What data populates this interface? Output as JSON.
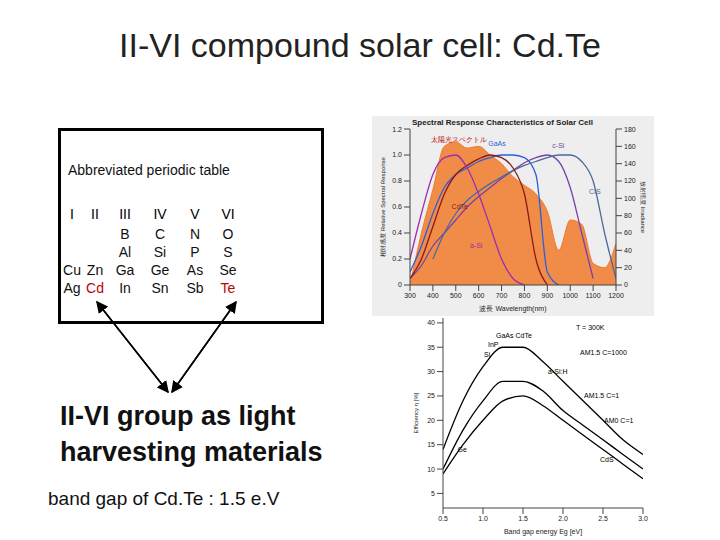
{
  "title": "II-VI compound solar cell: Cd.Te",
  "periodic_table": {
    "heading": "Abbreviated periodic table",
    "groups": [
      "I",
      "II",
      "III",
      "IV",
      "V",
      "VI"
    ],
    "rows": [
      [
        null,
        null,
        "B",
        "C",
        "N",
        "O"
      ],
      [
        null,
        null,
        "Al",
        "Si",
        "P",
        "S"
      ],
      [
        "Cu",
        "Zn",
        "Ga",
        "Ge",
        "As",
        "Se"
      ],
      [
        "Ag",
        "Cd",
        "In",
        "Sn",
        "Sb",
        "Te"
      ]
    ],
    "highlight": [
      "Cd",
      "Te"
    ],
    "highlight_color": "#c00000"
  },
  "caption": "II-VI group as light harvesting materials",
  "note": "band gap of Cd.Te : 1.5 e.V",
  "chart_data": [
    {
      "type": "line",
      "title": "Spectral Response Characteristics of Solar Cell",
      "xlabel": "波長 Wavelength(nm)",
      "ylabel": "相対感度 Relative Spectral Response",
      "y2label": "放射照度 Irradiance",
      "x": [
        300,
        350,
        400,
        450,
        500,
        550,
        600,
        650,
        700,
        750,
        800,
        850,
        900,
        950,
        1000,
        1050,
        1100,
        1150,
        1200
      ],
      "xlim": [
        300,
        1200
      ],
      "xticks": [
        300,
        400,
        500,
        600,
        700,
        800,
        900,
        1000,
        1100,
        1200
      ],
      "ylim": [
        0,
        1.2
      ],
      "yticks": [
        0,
        0.2,
        0.4,
        0.6,
        0.8,
        {
          "value": 1,
          "label": "1.0"
        },
        1.2
      ],
      "y2lim": [
        0,
        180
      ],
      "y2ticks": [
        0,
        20,
        40,
        60,
        80,
        100,
        120,
        140,
        160,
        180
      ],
      "grid": false,
      "series": [
        {
          "name": "太陽光スペクトル",
          "type": "area",
          "axis": "y2",
          "color": "#f07a2a",
          "values": [
            0,
            60,
            110,
            160,
            165,
            158,
            160,
            150,
            140,
            125,
            115,
            105,
            85,
            40,
            75,
            70,
            25,
            20,
            48
          ]
        },
        {
          "name": "GaAs",
          "type": "line",
          "color": "#2b5fd9",
          "values": [
            0.1,
            0.3,
            0.55,
            0.75,
            0.85,
            0.9,
            0.95,
            0.98,
            1,
            1,
            0.98,
            0.85,
            0.1,
            0,
            null,
            null,
            null,
            null,
            null
          ]
        },
        {
          "name": "c-Si",
          "type": "line",
          "color": "#7a3fa8",
          "values": [
            0.05,
            0.15,
            0.3,
            0.4,
            0.5,
            0.6,
            0.68,
            0.75,
            0.82,
            0.88,
            0.94,
            0.98,
            1,
            0.95,
            0.75,
            0.4,
            0.05,
            null,
            null
          ]
        },
        {
          "name": "CIS",
          "type": "line",
          "color": "#4a6a9a",
          "values": [
            null,
            null,
            0.2,
            0.4,
            0.55,
            0.65,
            0.72,
            0.78,
            0.83,
            0.88,
            0.92,
            0.95,
            0.98,
            1,
            1,
            0.95,
            0.8,
            0.4,
            0.05
          ]
        },
        {
          "name": "CdTe",
          "type": "line",
          "color": "#8b1a1a",
          "values": [
            0.05,
            0.2,
            0.45,
            0.7,
            0.85,
            0.92,
            0.97,
            1,
            0.98,
            0.9,
            0.7,
            0.2,
            0,
            null,
            null,
            null,
            null,
            null,
            null
          ]
        },
        {
          "name": "a-Si",
          "type": "line",
          "color": "#9a2fb0",
          "values": [
            0.2,
            0.55,
            0.85,
            0.98,
            1,
            0.9,
            0.7,
            0.45,
            0.2,
            0.05,
            0,
            null,
            null,
            null,
            null,
            null,
            null,
            null,
            null
          ]
        }
      ],
      "annotations": [
        {
          "text": "太陽光スペクトル",
          "x": 370,
          "y": 1.12,
          "color": "#c00000"
        },
        {
          "text": "GaAs",
          "x": 620,
          "y": 1.09,
          "color": "#2b5fd9"
        },
        {
          "text": "c-Si",
          "x": 900,
          "y": 1.07,
          "color": "#7a3fa8"
        },
        {
          "text": "CIS",
          "x": 1060,
          "y": 0.72,
          "color": "#4a6a9a"
        },
        {
          "text": "CdTe",
          "x": 460,
          "y": 0.6,
          "color": "#8b1a1a"
        },
        {
          "text": "a-Si",
          "x": 540,
          "y": 0.3,
          "color": "#9a2fb0"
        }
      ]
    },
    {
      "type": "line",
      "xlabel": "Band gap energy Eg [eV]",
      "ylabel": "Efficiency η [%]",
      "x": [
        0.5,
        0.75,
        1,
        1.25,
        1.5,
        1.75,
        2,
        2.25,
        2.5,
        2.75,
        3
      ],
      "xlim": [
        0.5,
        3
      ],
      "xticks": [
        0.5,
        {
          "value": 1,
          "label": "1.0"
        },
        1.5,
        {
          "value": 2,
          "label": "2.0"
        },
        2.5,
        {
          "value": 3,
          "label": "3.0"
        }
      ],
      "ylim": [
        2,
        41
      ],
      "yticks": [
        5,
        10,
        15,
        20,
        25,
        30,
        35,
        40
      ],
      "grid": false,
      "series": [
        {
          "name": "AM1.5 C=1000",
          "type": "line",
          "color": "#000000",
          "values": [
            14,
            24,
            31,
            35,
            35,
            32,
            28,
            24,
            20,
            16,
            13
          ]
        },
        {
          "name": "AM1.5 C=1",
          "type": "line",
          "color": "#000000",
          "values": [
            10,
            18,
            24,
            28,
            28,
            26,
            22,
            19,
            16,
            13,
            10
          ]
        },
        {
          "name": "AM0 C=1",
          "type": "line",
          "color": "#000000",
          "values": [
            9,
            15,
            20,
            24,
            25,
            23,
            20,
            17,
            14,
            11,
            8
          ]
        }
      ],
      "annotations": [
        {
          "text": "T = 300K",
          "x": 2.1,
          "y": 39,
          "color": "#000000"
        },
        {
          "text": "AM1.5 C=1000",
          "x": 2.15,
          "y": 34,
          "color": "#000000"
        },
        {
          "text": "GaAs CdTe",
          "x": 1.1,
          "y": 37.5,
          "color": "#000000"
        },
        {
          "text": "InP",
          "x": 1.0,
          "y": 35.5,
          "color": "#000000"
        },
        {
          "text": "Si",
          "x": 0.95,
          "y": 33.5,
          "color": "#000000"
        },
        {
          "text": "a-Si:H",
          "x": 1.75,
          "y": 30,
          "color": "#000000"
        },
        {
          "text": "AM1.5 C=1",
          "x": 2.2,
          "y": 25,
          "color": "#000000"
        },
        {
          "text": "AM0 C=1",
          "x": 2.45,
          "y": 20,
          "color": "#000000"
        },
        {
          "text": "Ge",
          "x": 0.62,
          "y": 14,
          "color": "#000000"
        },
        {
          "text": "CdS",
          "x": 2.4,
          "y": 12,
          "color": "#000000"
        }
      ]
    }
  ]
}
